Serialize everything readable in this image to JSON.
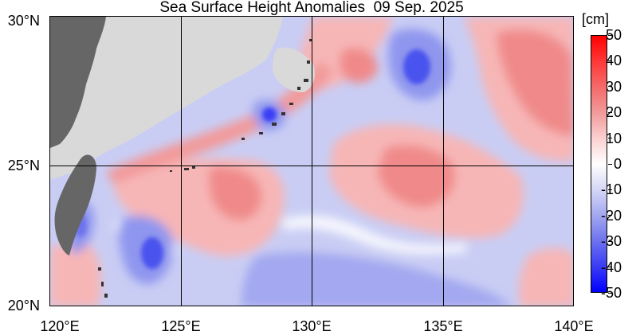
{
  "title": "Sea Surface Height Anomalies  09 Sep. 2025",
  "axes": {
    "lat_labels": [
      "30°N",
      "25°N",
      "20°N"
    ],
    "lon_labels": [
      "120°E",
      "125°E",
      "130°E",
      "135°E",
      "140°E"
    ],
    "lat_range": [
      20,
      30
    ],
    "lon_range": [
      120,
      140
    ],
    "grid": true
  },
  "colorbar": {
    "unit": "[cm]",
    "ticks": [
      "50",
      "40",
      "30",
      "20",
      "10",
      "0",
      "-10",
      "-20",
      "-30",
      "-40",
      "-50"
    ],
    "range": [
      -50,
      50
    ],
    "colors": [
      "#ff0000",
      "#ff3838",
      "#f56a6a",
      "#f29a9a",
      "#fbd0d0",
      "#ffffff",
      "#d5d7f6",
      "#a3a8f0",
      "#6d72ee",
      "#3a3cf5",
      "#0000ff"
    ]
  },
  "colors": {
    "land": "#666666",
    "land_mask": "#d9d9d9",
    "near_zero": "#ffffff",
    "positive_weak": "#f7b6b6",
    "positive_mid": "#f08a8a",
    "negative_weak": "#c9cdf4",
    "negative_mid": "#8f96ee",
    "negative_strong": "#4a52ee"
  }
}
